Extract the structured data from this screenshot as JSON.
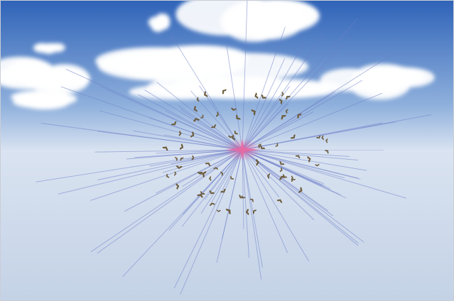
{
  "scene": {
    "description_visible_text": "",
    "colors": {
      "sky_top": "#2f63b8",
      "sky_mid": "#8fb0dc",
      "sky_horizon": "#d9e3f1",
      "ground": "#c4d2e6",
      "ray": "#6f7fc9",
      "center_glow": "#e86aa3",
      "bird": "#6b5a3a",
      "cloud": "#ffffff"
    },
    "icons": {
      "agent": "bird-icon",
      "target": "attractor-star-icon"
    },
    "agent_count": 75
  }
}
